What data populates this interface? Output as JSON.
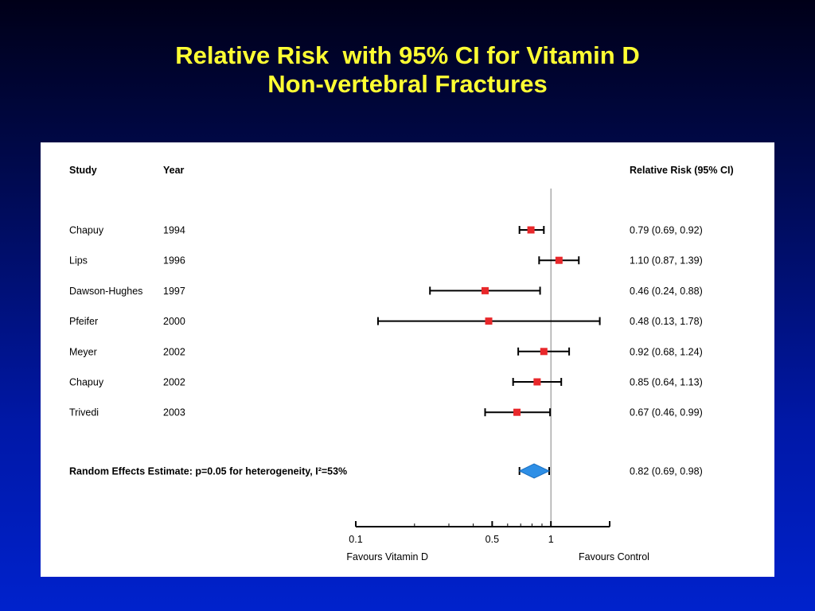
{
  "title": {
    "line1": "Relative Risk  with 95% CI for Vitamin D",
    "line2": "Non-vertebral Fractures"
  },
  "colors": {
    "title": "#ffff33",
    "marker": "#e8282b",
    "diamond": "#2e8fe6",
    "line": "#000000",
    "reference": "#808080"
  },
  "chart_data": {
    "type": "forest",
    "xscale": "log",
    "headers": {
      "study": "Study",
      "year": "Year",
      "estimate": "Relative Risk (95% CI)"
    },
    "studies": [
      {
        "study": "Chapuy",
        "year": "1994",
        "rr": 0.79,
        "lo": 0.69,
        "hi": 0.92,
        "label": "0.79 (0.69, 0.92)"
      },
      {
        "study": "Lips",
        "year": "1996",
        "rr": 1.1,
        "lo": 0.87,
        "hi": 1.39,
        "label": "1.10 (0.87, 1.39)"
      },
      {
        "study": "Dawson-Hughes",
        "year": "1997",
        "rr": 0.46,
        "lo": 0.24,
        "hi": 0.88,
        "label": "0.46 (0.24, 0.88)"
      },
      {
        "study": "Pfeifer",
        "year": "2000",
        "rr": 0.48,
        "lo": 0.13,
        "hi": 1.78,
        "label": "0.48 (0.13, 1.78)"
      },
      {
        "study": "Meyer",
        "year": "2002",
        "rr": 0.92,
        "lo": 0.68,
        "hi": 1.24,
        "label": "0.92 (0.68, 1.24)"
      },
      {
        "study": "Chapuy",
        "year": "2002",
        "rr": 0.85,
        "lo": 0.64,
        "hi": 1.13,
        "label": "0.85 (0.64, 1.13)"
      },
      {
        "study": "Trivedi",
        "year": "2003",
        "rr": 0.67,
        "lo": 0.46,
        "hi": 0.99,
        "label": "0.67 (0.46, 0.99)"
      }
    ],
    "summary": {
      "label": "Random Effects Estimate: p=0.05 for heterogeneity, I²=53%",
      "rr": 0.82,
      "lo": 0.69,
      "hi": 0.98,
      "estimate_label": "0.82 (0.69, 0.98)"
    },
    "reference_value": 1,
    "xlim": [
      0.1,
      2
    ],
    "minor_ticks": [
      0.2,
      0.3,
      0.4,
      0.6,
      0.7,
      0.8,
      0.9
    ],
    "ticks": [
      {
        "value": 0.1,
        "label": "0.1"
      },
      {
        "value": 0.5,
        "label": "0.5"
      },
      {
        "value": 1,
        "label": "1"
      }
    ],
    "favours_left": "Favours Vitamin D",
    "favours_right": "Favours Control"
  }
}
